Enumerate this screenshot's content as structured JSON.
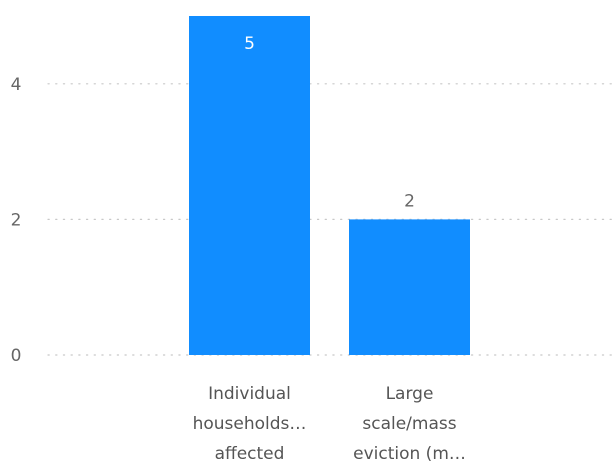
{
  "chart_data": {
    "type": "bar",
    "title": "",
    "xlabel": "",
    "ylabel": "",
    "categories": [
      [
        "Individual",
        "households…",
        "affected"
      ],
      [
        "Large",
        "scale/mass",
        "eviction (m…"
      ]
    ],
    "values": [
      5,
      2
    ],
    "data_labels": [
      "5",
      "2"
    ],
    "yticks": [
      0,
      2,
      4
    ],
    "ytick_labels": [
      "0",
      "2",
      "4"
    ],
    "ylim": [
      0,
      5
    ],
    "grid": true,
    "legend": "none",
    "colors": {
      "bar": "#118DFF",
      "grid": "#C8C8C8",
      "label_inside": "#FFFFFF",
      "label_outside": "#666666"
    }
  }
}
